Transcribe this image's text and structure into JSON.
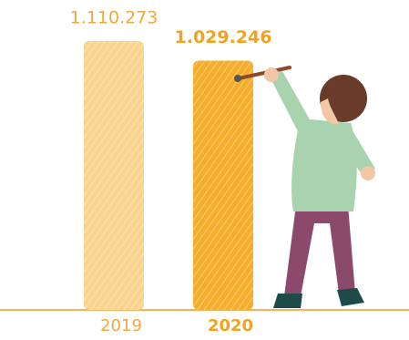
{
  "chart_data": {
    "type": "bar",
    "categories": [
      "2019",
      "2020"
    ],
    "values": [
      1110273,
      1029246
    ],
    "value_labels": [
      "1.110.273",
      "1.029.246"
    ],
    "colors": [
      "#f8d48e",
      "#f4ae2c"
    ]
  }
}
